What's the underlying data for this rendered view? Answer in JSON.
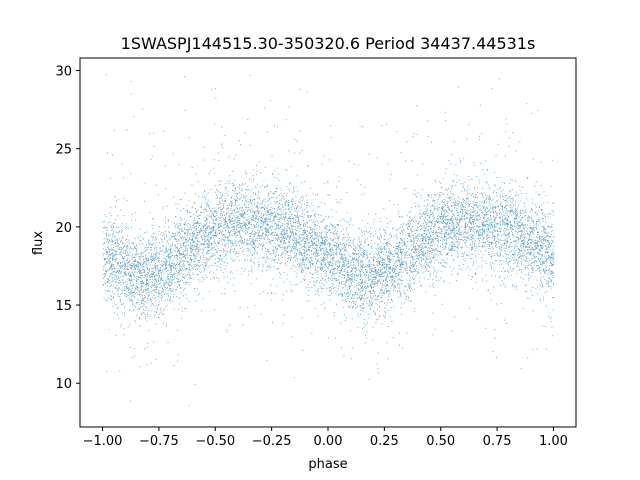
{
  "chart_data": {
    "type": "scatter",
    "title": "1SWASPJ144515.30-350320.6 Period 34437.44531s",
    "xlabel": "phase",
    "ylabel": "flux",
    "xlim": [
      -1.1,
      1.1
    ],
    "ylim": [
      7.2,
      30.8
    ],
    "x_ticks": [
      -1.0,
      -0.75,
      -0.5,
      -0.25,
      0.0,
      0.25,
      0.5,
      0.75,
      1.0
    ],
    "x_tick_labels": [
      "−1.00",
      "−0.75",
      "−0.50",
      "−0.25",
      "0.00",
      "0.25",
      "0.50",
      "0.75",
      "1.00"
    ],
    "y_ticks": [
      10,
      15,
      20,
      25,
      30
    ],
    "y_tick_labels": [
      "10",
      "15",
      "20",
      "25",
      "30"
    ],
    "grid": false,
    "legend": "none",
    "series": [
      {
        "marker_color": "#1f77b4",
        "description_model": "phase-folded light curve, mirrored over [-1,1]",
        "x": [
          -1.0,
          -0.9,
          -0.8,
          -0.7,
          -0.6,
          -0.5,
          -0.4,
          -0.3,
          -0.2,
          -0.1,
          0.0,
          0.1,
          0.2,
          0.3,
          0.4,
          0.5,
          0.6,
          0.7,
          0.8,
          0.9,
          1.0
        ],
        "y": [
          18.3,
          17.2,
          16.8,
          17.6,
          18.9,
          19.8,
          20.3,
          20.2,
          19.8,
          19.0,
          18.3,
          17.2,
          16.8,
          17.6,
          18.9,
          19.8,
          20.3,
          20.2,
          19.8,
          19.0,
          18.3
        ]
      }
    ]
  }
}
